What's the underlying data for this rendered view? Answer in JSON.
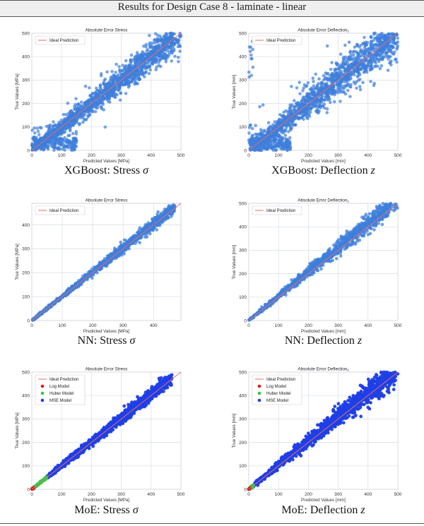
{
  "header": {
    "title": "Results for Design Case 8 - laminate - linear"
  },
  "captions": [
    {
      "text": "XGBoost: Stress ",
      "var": "σ"
    },
    {
      "text": "XGBoost: Deflection ",
      "var": "z"
    },
    {
      "text": "NN: Stress ",
      "var": "σ"
    },
    {
      "text": "NN: Deflection ",
      "var": "z"
    },
    {
      "text": "MoE: Stress ",
      "var": "σ"
    },
    {
      "text": "MoE: Deflection ",
      "var": "z"
    }
  ],
  "colors": {
    "point": "#3e7fdc",
    "mse": "#1f3fe6",
    "huber": "#2ecc40",
    "log": "#e31a1c",
    "ideal": "#e06c75",
    "grid": "#d6dde6"
  },
  "chart_data": [
    {
      "type": "scatter",
      "title": "Absolute Error Stress",
      "xlabel": "Predicted Values [MPa]",
      "ylabel": "True Values [MPa]",
      "xlim": [
        0,
        500
      ],
      "ylim": [
        0,
        500
      ],
      "xticks": [
        0,
        100,
        200,
        300,
        400,
        500
      ],
      "yticks": [
        0,
        100,
        200,
        300,
        400,
        500
      ],
      "legend": [
        "Ideal Prediction"
      ],
      "legend_position": "top-left",
      "grid": true,
      "model": "XGBoost",
      "points_approx": [
        [
          10,
          5
        ],
        [
          15,
          80
        ],
        [
          40,
          60
        ],
        [
          60,
          10
        ],
        [
          90,
          100
        ],
        [
          120,
          100
        ],
        [
          150,
          60
        ],
        [
          170,
          180
        ],
        [
          200,
          220
        ],
        [
          250,
          250
        ],
        [
          300,
          310
        ],
        [
          350,
          340
        ],
        [
          400,
          420
        ],
        [
          450,
          470
        ],
        [
          480,
          490
        ]
      ]
    },
    {
      "type": "scatter",
      "title": "Absolute Error Deflection_z",
      "xlabel": "Predicted Values [mm]",
      "ylabel": "True Values [mm]",
      "xlim": [
        0,
        500
      ],
      "ylim": [
        0,
        500
      ],
      "xticks": [
        0,
        100,
        200,
        300,
        400,
        500
      ],
      "yticks": [
        0,
        100,
        200,
        300,
        400,
        500
      ],
      "legend": [
        "Ideal Prediction"
      ],
      "legend_position": "top-left",
      "grid": true,
      "model": "XGBoost",
      "points_approx": [
        [
          10,
          10
        ],
        [
          30,
          70
        ],
        [
          80,
          20
        ],
        [
          100,
          150
        ],
        [
          150,
          100
        ],
        [
          200,
          220
        ],
        [
          250,
          300
        ],
        [
          300,
          250
        ],
        [
          350,
          380
        ],
        [
          400,
          430
        ],
        [
          450,
          480
        ],
        [
          500,
          500
        ]
      ]
    },
    {
      "type": "scatter",
      "title": "Absolute Error Stress",
      "xlabel": "Predicted Values [MPa]",
      "ylabel": "True Values [MPa]",
      "xlim": [
        0,
        490
      ],
      "ylim": [
        0,
        490
      ],
      "xticks": [
        0,
        100,
        200,
        300,
        400
      ],
      "yticks": [
        0,
        100,
        200,
        300,
        400
      ],
      "legend": [
        "Ideal Prediction"
      ],
      "legend_position": "top-left",
      "grid": true,
      "model": "NN",
      "points_approx": [
        [
          5,
          5
        ],
        [
          100,
          100
        ],
        [
          200,
          200
        ],
        [
          300,
          305
        ],
        [
          400,
          410
        ],
        [
          450,
          480
        ]
      ]
    },
    {
      "type": "scatter",
      "title": "Absolute Error Deflection_z",
      "xlabel": "Predicted Values [mm]",
      "ylabel": "True Values [mm]",
      "xlim": [
        0,
        500
      ],
      "ylim": [
        0,
        500
      ],
      "xticks": [
        0,
        100,
        200,
        300,
        400,
        500
      ],
      "yticks": [
        0,
        100,
        200,
        300,
        400,
        500
      ],
      "legend": [
        "Ideal Prediction"
      ],
      "legend_position": "top-left",
      "grid": true,
      "model": "NN",
      "points_approx": [
        [
          5,
          5
        ],
        [
          100,
          105
        ],
        [
          200,
          210
        ],
        [
          300,
          320
        ],
        [
          400,
          430
        ],
        [
          480,
          500
        ]
      ]
    },
    {
      "type": "scatter",
      "title": "Absolute Error Stress",
      "xlabel": "Predicted Values [MPa]",
      "ylabel": "True Values [MPa]",
      "xlim": [
        0,
        500
      ],
      "ylim": [
        0,
        500
      ],
      "xticks": [
        0,
        100,
        200,
        300,
        400,
        500
      ],
      "yticks": [
        0,
        100,
        200,
        300,
        400,
        500
      ],
      "legend": [
        "Ideal Prediction",
        "Log Model",
        "Huber Model",
        "MSE Model"
      ],
      "legend_position": "top-left",
      "grid": true,
      "model": "MoE",
      "series_regions": {
        "log": [
          0,
          5
        ],
        "huber": [
          5,
          50
        ],
        "mse": [
          50,
          470
        ]
      }
    },
    {
      "type": "scatter",
      "title": "Absolute Error Deflection_z",
      "xlabel": "Predicted Values [mm]",
      "ylabel": "True Values [mm]",
      "xlim": [
        0,
        500
      ],
      "ylim": [
        0,
        500
      ],
      "xticks": [
        0,
        100,
        200,
        300,
        400,
        500
      ],
      "yticks": [
        0,
        100,
        200,
        300,
        400,
        500
      ],
      "legend": [
        "Ideal Prediction",
        "Log Model",
        "Huber Model",
        "MSE Model"
      ],
      "legend_position": "top-left",
      "grid": true,
      "model": "MoE",
      "series_regions": {
        "log": [
          0,
          3
        ],
        "huber": [
          3,
          15
        ],
        "mse": [
          15,
          500
        ]
      }
    }
  ]
}
